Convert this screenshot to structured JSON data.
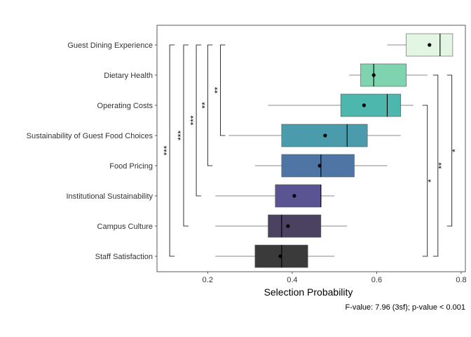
{
  "chart_data": {
    "type": "boxplot",
    "xlabel": "Selection Probability",
    "ylabel": "",
    "caption": "F-value: 7.96 (3sf); p-value < 0.001",
    "xlim": [
      0.08,
      0.81
    ],
    "xticks": [
      0.2,
      0.4,
      0.6,
      0.8
    ],
    "xtick_labels": [
      "0.2",
      "0.4",
      "0.6",
      "0.8"
    ],
    "grid": false,
    "panel_border": true,
    "categories": [
      "Guest Dining Experience",
      "Dietary Health",
      "Operating Costs",
      "Sustainability of Guest Food Choices",
      "Food Pricing",
      "Institutional Sustainability",
      "Campus Culture",
      "Staff Satisfaction"
    ],
    "boxes": [
      {
        "category": "Guest Dining Experience",
        "whisker_low": 0.625,
        "q1": 0.67,
        "median": 0.75,
        "q3": 0.78,
        "whisker_high": 0.78,
        "mean": 0.725,
        "color": "#E3F5E3"
      },
      {
        "category": "Dietary Health",
        "whisker_low": 0.535,
        "q1": 0.562,
        "median": 0.593,
        "q3": 0.67,
        "whisker_high": 0.72,
        "mean": 0.593,
        "color": "#7FD3AE"
      },
      {
        "category": "Operating Costs",
        "whisker_low": 0.343,
        "q1": 0.515,
        "median": 0.625,
        "q3": 0.657,
        "whisker_high": 0.687,
        "mean": 0.57,
        "color": "#4DB6AD"
      },
      {
        "category": "Sustainability of Guest Food Choices",
        "whisker_low": 0.25,
        "q1": 0.375,
        "median": 0.53,
        "q3": 0.578,
        "whisker_high": 0.657,
        "mean": 0.478,
        "color": "#4A9CAC"
      },
      {
        "category": "Food Pricing",
        "whisker_low": 0.312,
        "q1": 0.375,
        "median": 0.468,
        "q3": 0.547,
        "whisker_high": 0.625,
        "mean": 0.465,
        "color": "#4F75A5"
      },
      {
        "category": "Institutional Sustainability",
        "whisker_low": 0.218,
        "q1": 0.36,
        "median": 0.468,
        "q3": 0.468,
        "whisker_high": 0.5,
        "mean": 0.405,
        "color": "#5A5493"
      },
      {
        "category": "Campus Culture",
        "whisker_low": 0.218,
        "q1": 0.343,
        "median": 0.375,
        "q3": 0.468,
        "whisker_high": 0.53,
        "mean": 0.39,
        "color": "#4A4260"
      },
      {
        "category": "Staff Satisfaction",
        "whisker_low": 0.218,
        "q1": 0.312,
        "median": 0.375,
        "q3": 0.437,
        "whisker_high": 0.5,
        "mean": 0.372,
        "color": "#3A3A3A"
      }
    ],
    "significance_brackets": [
      {
        "from": "Guest Dining Experience",
        "to": "Staff Satisfaction",
        "label": "***",
        "x": 0.11
      },
      {
        "from": "Guest Dining Experience",
        "to": "Campus Culture",
        "label": "***",
        "x": 0.143
      },
      {
        "from": "Guest Dining Experience",
        "to": "Institutional Sustainability",
        "label": "***",
        "x": 0.173
      },
      {
        "from": "Guest Dining Experience",
        "to": "Food Pricing",
        "label": "**",
        "x": 0.2
      },
      {
        "from": "Guest Dining Experience",
        "to": "Sustainability of Guest Food Choices",
        "label": "**",
        "x": 0.23
      },
      {
        "from": "Operating Costs",
        "to": "Staff Satisfaction",
        "label": "*",
        "x": 0.72
      },
      {
        "from": "Dietary Health",
        "to": "Staff Satisfaction",
        "label": "**",
        "x": 0.745
      },
      {
        "from": "Dietary Health",
        "to": "Campus Culture",
        "label": "*",
        "x": 0.778
      }
    ]
  }
}
